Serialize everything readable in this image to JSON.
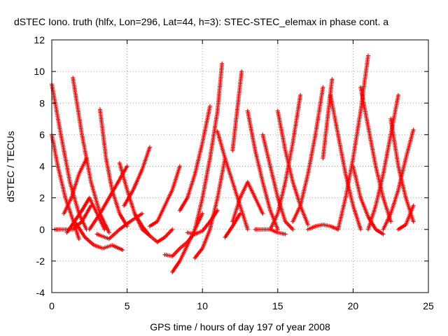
{
  "chart_data": {
    "type": "scatter",
    "title": "dSTEC Iono. truth (hlfx, Lon=296, Lat=44, h=3): STEC-STEC_elemax in phase cont. a",
    "xlabel": "GPS time / hours of day 197 of year 2008",
    "ylabel": "dSTEC  / TECUs",
    "xlim": [
      0,
      25
    ],
    "ylim": [
      -4,
      12
    ],
    "xticks": [
      0,
      5,
      10,
      15,
      20,
      25
    ],
    "yticks": [
      -4,
      -2,
      0,
      2,
      4,
      6,
      8,
      10,
      12
    ],
    "x_tick_labels": [
      "0",
      "5",
      "10",
      "15",
      "20",
      "25"
    ],
    "y_tick_labels": [
      "-4",
      "-2",
      "0",
      "2",
      "4",
      "6",
      "8",
      "10",
      "12"
    ],
    "grid": true,
    "marker": "+",
    "color": "#ff0000",
    "series": [
      {
        "x": [
          0.0,
          0.6,
          1.2,
          1.8,
          2.3
        ],
        "y": [
          9.2,
          6.0,
          3.0,
          1.0,
          0.0
        ]
      },
      {
        "x": [
          0.0,
          0.4,
          0.9,
          1.4,
          1.8
        ],
        "y": [
          6.0,
          4.0,
          2.0,
          0.6,
          -0.6
        ]
      },
      {
        "x": [
          0.2,
          0.8,
          1.4,
          2.0,
          2.6
        ],
        "y": [
          0.0,
          0.0,
          0.0,
          0.5,
          1.5
        ]
      },
      {
        "x": [
          1.0,
          1.5,
          2.0,
          2.5,
          3.0,
          3.5
        ],
        "y": [
          -0.2,
          0.5,
          1.2,
          2.0,
          1.0,
          0.0
        ]
      },
      {
        "x": [
          1.4,
          2.0,
          2.6,
          3.2,
          3.8
        ],
        "y": [
          9.6,
          6.0,
          3.0,
          1.0,
          -0.2
        ]
      },
      {
        "x": [
          1.6,
          2.2,
          2.8,
          3.4,
          4.0,
          4.7
        ],
        "y": [
          0.4,
          -0.5,
          -1.0,
          -1.2,
          -1.0,
          -1.3
        ]
      },
      {
        "x": [
          0.8,
          1.3,
          1.8,
          2.3
        ],
        "y": [
          1.0,
          2.0,
          3.5,
          4.5
        ]
      },
      {
        "x": [
          2.5,
          3.2,
          3.8,
          4.4,
          5.0
        ],
        "y": [
          0.0,
          1.0,
          2.0,
          3.0,
          4.0
        ]
      },
      {
        "x": [
          3.2,
          3.6,
          4.0,
          4.5,
          5.0
        ],
        "y": [
          7.6,
          4.5,
          2.5,
          1.0,
          0.2
        ]
      },
      {
        "x": [
          3.0,
          3.8,
          4.5,
          5.2,
          6.0
        ],
        "y": [
          -0.3,
          -0.6,
          0.0,
          0.5,
          1.0
        ]
      },
      {
        "x": [
          4.5,
          5.0,
          5.5,
          6.0,
          6.5
        ],
        "y": [
          4.2,
          2.5,
          1.0,
          0.0,
          -0.4
        ]
      },
      {
        "x": [
          4.8,
          5.4,
          6.0,
          6.5
        ],
        "y": [
          1.5,
          2.5,
          3.8,
          5.2
        ]
      },
      {
        "x": [
          5.5,
          6.0,
          6.5,
          7.0,
          7.5,
          8.0
        ],
        "y": [
          1.0,
          0.2,
          -0.4,
          -0.8,
          -0.5,
          0.0
        ]
      },
      {
        "x": [
          6.5,
          7.0,
          7.5,
          8.0,
          8.5
        ],
        "y": [
          0.2,
          0.5,
          1.5,
          2.5,
          4.0
        ]
      },
      {
        "x": [
          7.5,
          8.0,
          8.5,
          9.0,
          9.5
        ],
        "y": [
          -1.6,
          -1.7,
          -1.2,
          -0.8,
          -0.2
        ]
      },
      {
        "x": [
          8.0,
          8.5,
          9.0,
          9.5,
          10.0
        ],
        "y": [
          -2.7,
          -2.0,
          -1.0,
          0.0,
          1.0
        ]
      },
      {
        "x": [
          8.5,
          9.0,
          9.5,
          10.0,
          10.5
        ],
        "y": [
          1.2,
          2.0,
          3.5,
          5.5,
          7.8
        ]
      },
      {
        "x": [
          9.0,
          9.5,
          10.0,
          10.5,
          11.0
        ],
        "y": [
          -0.2,
          -0.3,
          -0.1,
          0.5,
          1.2
        ]
      },
      {
        "x": [
          9.5,
          10.0,
          10.5,
          11.0,
          11.5
        ],
        "y": [
          -1.8,
          -1.2,
          0.0,
          2.0,
          4.5
        ]
      },
      {
        "x": [
          9.5,
          10.0,
          10.5,
          11.0,
          11.3
        ],
        "y": [
          0.0,
          2.0,
          4.5,
          7.5,
          10.5
        ]
      },
      {
        "x": [
          11.0,
          11.5,
          12.0,
          12.5,
          13.0
        ],
        "y": [
          6.2,
          4.5,
          3.0,
          1.5,
          0.0
        ]
      },
      {
        "x": [
          11.5,
          12.0,
          12.5
        ],
        "y": [
          -0.5,
          0.2,
          1.0
        ]
      },
      {
        "x": [
          12.0,
          12.3,
          12.6
        ],
        "y": [
          5.0,
          7.5,
          10.0
        ]
      },
      {
        "x": [
          12.0,
          12.5,
          13.0,
          13.5,
          14.0
        ],
        "y": [
          0.5,
          2.0,
          3.0,
          2.0,
          1.0
        ]
      },
      {
        "x": [
          13.0,
          13.5,
          14.0,
          14.5,
          15.0
        ],
        "y": [
          7.5,
          5.0,
          3.0,
          1.2,
          0.0
        ]
      },
      {
        "x": [
          13.5,
          14.0,
          14.5,
          15.0,
          15.5
        ],
        "y": [
          0.0,
          0.0,
          0.0,
          -0.2,
          -0.3
        ]
      },
      {
        "x": [
          14.0,
          14.5,
          15.0,
          15.5,
          16.0
        ],
        "y": [
          6.0,
          4.0,
          2.0,
          0.5,
          0.0
        ]
      },
      {
        "x": [
          14.5,
          15.0,
          15.5,
          16.0,
          16.5
        ],
        "y": [
          0.0,
          1.0,
          3.0,
          5.5,
          8.5
        ]
      },
      {
        "x": [
          15.0,
          15.5,
          16.0,
          16.5,
          17.0
        ],
        "y": [
          7.5,
          5.0,
          3.0,
          1.5,
          0.3
        ]
      },
      {
        "x": [
          16.0,
          16.5,
          17.0,
          17.5,
          18.0
        ],
        "y": [
          0.5,
          1.5,
          3.5,
          6.0,
          9.0
        ]
      },
      {
        "x": [
          17.0,
          17.5,
          18.0,
          18.5,
          19.0
        ],
        "y": [
          0.0,
          0.2,
          0.3,
          0.2,
          0.0
        ]
      },
      {
        "x": [
          18.0,
          18.3,
          18.6
        ],
        "y": [
          4.5,
          7.0,
          9.5
        ]
      },
      {
        "x": [
          18.5,
          19.0,
          19.5,
          20.0,
          20.5
        ],
        "y": [
          8.5,
          6.0,
          3.5,
          1.5,
          0.0
        ]
      },
      {
        "x": [
          19.0,
          19.5,
          20.0,
          20.5,
          21.0
        ],
        "y": [
          0.0,
          2.0,
          4.5,
          7.5,
          11.0
        ]
      },
      {
        "x": [
          20.0,
          20.5,
          21.0,
          21.5,
          22.0
        ],
        "y": [
          4.0,
          2.0,
          0.8,
          0.0,
          -0.3
        ]
      },
      {
        "x": [
          20.5,
          21.0,
          21.5,
          22.0,
          22.5
        ],
        "y": [
          9.0,
          6.5,
          4.0,
          2.0,
          0.5
        ]
      },
      {
        "x": [
          21.0,
          21.5,
          22.0,
          22.5,
          23.0
        ],
        "y": [
          0.0,
          1.5,
          3.5,
          6.0,
          8.5
        ]
      },
      {
        "x": [
          22.0,
          22.5,
          23.0,
          23.5,
          24.0
        ],
        "y": [
          0.0,
          1.0,
          2.5,
          4.5,
          6.3
        ]
      },
      {
        "x": [
          22.5,
          23.0,
          23.5,
          24.0
        ],
        "y": [
          7.0,
          4.0,
          2.0,
          0.5
        ]
      },
      {
        "x": [
          23.0,
          23.5,
          24.0
        ],
        "y": [
          0.0,
          0.3,
          1.5
        ]
      }
    ]
  }
}
